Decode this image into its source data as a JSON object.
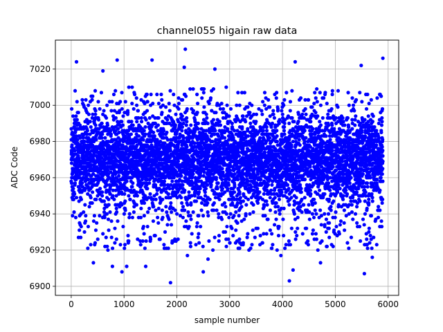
{
  "chart_data": {
    "type": "scatter",
    "title": "channel055 higain raw data",
    "xlabel": "sample number",
    "ylabel": "ADC Code",
    "xlim": [
      -300,
      6200
    ],
    "ylim": [
      6895,
      7036
    ],
    "xticks": [
      0,
      1000,
      2000,
      3000,
      4000,
      5000,
      6000
    ],
    "yticks": [
      6900,
      6920,
      6940,
      6960,
      6980,
      7000,
      7020
    ],
    "xtick_labels": [
      "0",
      "1000",
      "2000",
      "3000",
      "4000",
      "5000",
      "6000"
    ],
    "ytick_labels": [
      "6900",
      "6920",
      "6940",
      "6960",
      "6980",
      "7000",
      "7020"
    ],
    "grid": true,
    "marker_color": "#0000ff",
    "series": [
      {
        "n_points": 5900,
        "x_range": [
          0,
          5900
        ],
        "center": 6970,
        "dense_band": [
          6945,
          6995
        ],
        "sparse_range": [
          6920,
          7010
        ],
        "outliers": [
          [
            100,
            7024
          ],
          [
            870,
            7025
          ],
          [
            1530,
            7025
          ],
          [
            2160,
            7031
          ],
          [
            2140,
            7021
          ],
          [
            4240,
            7024
          ],
          [
            5490,
            7022
          ],
          [
            5900,
            7026
          ],
          [
            600,
            7019
          ],
          [
            2720,
            7020
          ],
          [
            1880,
            6902
          ],
          [
            4130,
            6903
          ],
          [
            960,
            6908
          ],
          [
            2500,
            6908
          ],
          [
            5550,
            6907
          ],
          [
            4200,
            6909
          ],
          [
            1410,
            6911
          ],
          [
            2200,
            6917
          ],
          [
            780,
            6911
          ],
          [
            3970,
            6917
          ],
          [
            5700,
            6916
          ],
          [
            1050,
            6911
          ],
          [
            4720,
            6913
          ],
          [
            2590,
            6915
          ],
          [
            420,
            6913
          ]
        ]
      }
    ]
  }
}
